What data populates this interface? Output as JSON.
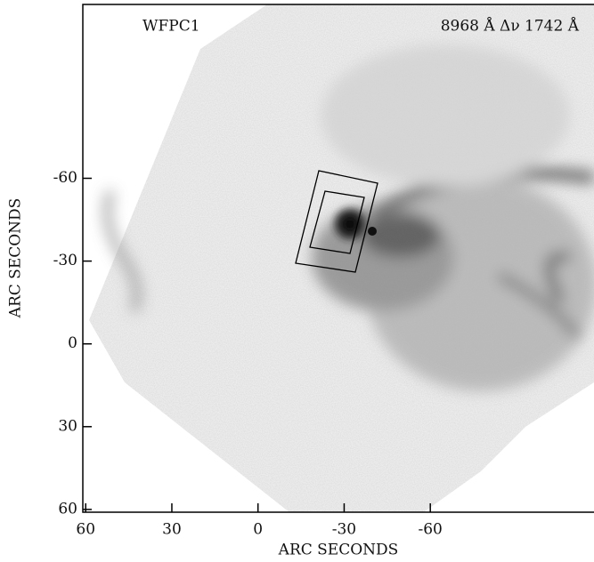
{
  "chart_data": {
    "type": "image",
    "annotations": [
      "WFPC1",
      "8968 Å  Δν 1742 Å"
    ],
    "xlabel": "ARC SECONDS",
    "ylabel": "ARC SECONDS",
    "xlim": [
      61,
      -117
    ],
    "ylim": [
      61,
      -123
    ],
    "xticks": [
      60,
      30,
      0,
      -30,
      -60
    ],
    "yticks": [
      -60,
      -30,
      0,
      30,
      60
    ]
  }
}
